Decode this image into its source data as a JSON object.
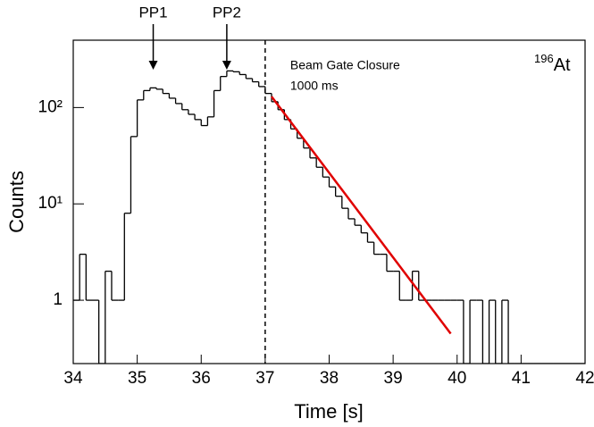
{
  "chart_data": {
    "type": "histogram",
    "xlabel": "Time [s]",
    "ylabel": "Counts",
    "log_y": true,
    "color": "#000000",
    "bins": [
      34.0,
      34.1,
      34.2,
      34.3,
      34.4,
      34.5,
      34.6,
      34.7,
      34.8,
      34.9,
      35.0,
      35.1,
      35.2,
      35.3,
      35.4,
      35.5,
      35.6,
      35.7,
      35.8,
      35.9,
      36.0,
      36.1,
      36.2,
      36.3,
      36.4,
      36.5,
      36.6,
      36.7,
      36.8,
      36.9,
      37.0,
      37.1,
      37.2,
      37.3,
      37.4,
      37.5,
      37.6,
      37.7,
      37.8,
      37.9,
      38.0,
      38.1,
      38.2,
      38.3,
      38.4,
      38.5,
      38.6,
      38.7,
      38.8,
      38.9,
      39.0,
      39.1,
      39.2,
      39.3,
      39.4,
      39.5,
      39.6,
      39.7,
      39.8,
      39.9,
      40.0,
      40.1,
      40.2,
      40.3,
      40.4,
      40.5,
      40.6,
      40.7,
      40.8,
      40.9,
      41.0,
      41.1,
      41.2,
      41.3,
      41.4,
      41.5,
      41.6,
      41.7,
      41.8,
      41.9,
      42.0
    ],
    "values": [
      1,
      3,
      1,
      1,
      0,
      2,
      1,
      1,
      8,
      50,
      120,
      150,
      160,
      155,
      140,
      125,
      110,
      95,
      85,
      75,
      65,
      80,
      150,
      210,
      240,
      235,
      220,
      200,
      185,
      165,
      140,
      115,
      95,
      75,
      60,
      48,
      38,
      30,
      24,
      19,
      15,
      12,
      9,
      7,
      6,
      5,
      4,
      3,
      3,
      2,
      2,
      1,
      1,
      2,
      1,
      1,
      1,
      1,
      1,
      1,
      1,
      0,
      1,
      1,
      0,
      1,
      0,
      1,
      0,
      0,
      0,
      0,
      0,
      0,
      0,
      0,
      0,
      0,
      0,
      0
    ],
    "fit": {
      "x": [
        37.1,
        39.9
      ],
      "values": [
        130,
        0.45
      ],
      "color": "#e00000"
    },
    "xlim": [
      34,
      42
    ],
    "xticks": [
      34,
      35,
      36,
      37,
      38,
      39,
      40,
      41,
      42
    ],
    "ylim": [
      0.22,
      500
    ],
    "yticks": [
      1,
      {
        "value": 10,
        "label": "10¹"
      },
      {
        "value": 100,
        "label": "10²"
      }
    ],
    "peaks": [
      {
        "label": "PP1",
        "x": 35.25
      },
      {
        "label": "PP2",
        "x": 36.4
      }
    ],
    "gate": {
      "x": 37,
      "lines": [
        "Beam Gate Closure",
        "1000 ms"
      ]
    },
    "isotope": {
      "mass": "196",
      "symbol": "At"
    }
  }
}
